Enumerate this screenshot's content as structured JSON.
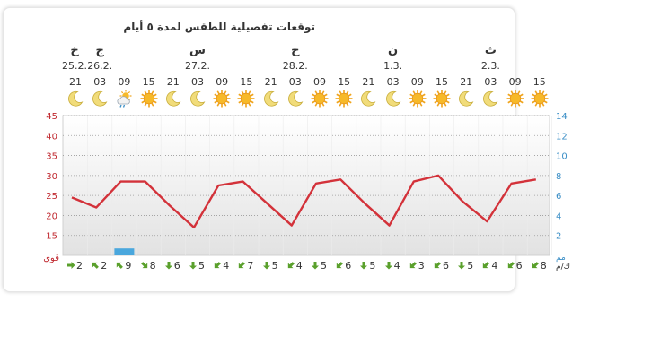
{
  "title": "توقعات تفصيلية للطقس لمدة ٥ أيام",
  "days": [
    {
      "label": "خ",
      "date": "25.2."
    },
    {
      "label": "ج",
      "date": "26.2."
    },
    {
      "label": "س",
      "date": "27.2."
    },
    {
      "label": "ح",
      "date": "28.2."
    },
    {
      "label": "ن",
      "date": "1.3."
    },
    {
      "label": "ث",
      "date": "2.3."
    }
  ],
  "columns": [
    {
      "hour": "21",
      "icon": "moon-icon",
      "temp": 24.5,
      "wind": 2,
      "dir": "east"
    },
    {
      "hour": "03",
      "icon": "moon-icon",
      "temp": 22,
      "wind": 2,
      "dir": "northwest"
    },
    {
      "hour": "09",
      "icon": "partly-cloudy-rain-icon",
      "temp": 28.5,
      "wind": 9,
      "dir": "northwest"
    },
    {
      "hour": "15",
      "icon": "sun-icon",
      "temp": 28.5,
      "wind": 8,
      "dir": "southeast"
    },
    {
      "hour": "21",
      "icon": "moon-icon",
      "temp": 22.5,
      "wind": 6,
      "dir": "south"
    },
    {
      "hour": "03",
      "icon": "moon-icon",
      "temp": 17,
      "wind": 5,
      "dir": "south"
    },
    {
      "hour": "09",
      "icon": "sun-icon",
      "temp": 27.5,
      "wind": 4,
      "dir": "southwest"
    },
    {
      "hour": "15",
      "icon": "sun-icon",
      "temp": 28.5,
      "wind": 7,
      "dir": "southwest"
    },
    {
      "hour": "21",
      "icon": "moon-icon",
      "temp": 23,
      "wind": 5,
      "dir": "south"
    },
    {
      "hour": "03",
      "icon": "moon-icon",
      "temp": 17.5,
      "wind": 4,
      "dir": "southwest"
    },
    {
      "hour": "09",
      "icon": "sun-icon",
      "temp": 28,
      "wind": 5,
      "dir": "south"
    },
    {
      "hour": "15",
      "icon": "sun-icon",
      "temp": 29,
      "wind": 6,
      "dir": "southwest"
    },
    {
      "hour": "21",
      "icon": "moon-icon",
      "temp": 23,
      "wind": 5,
      "dir": "south"
    },
    {
      "hour": "03",
      "icon": "moon-icon",
      "temp": 17.5,
      "wind": 4,
      "dir": "south"
    },
    {
      "hour": "09",
      "icon": "sun-icon",
      "temp": 28.5,
      "wind": 3,
      "dir": "southwest"
    },
    {
      "hour": "15",
      "icon": "sun-icon",
      "temp": 30,
      "wind": 6,
      "dir": "southwest"
    },
    {
      "hour": "21",
      "icon": "moon-icon",
      "temp": 23.5,
      "wind": 5,
      "dir": "south"
    },
    {
      "hour": "03",
      "icon": "moon-icon",
      "temp": 18.5,
      "wind": 4,
      "dir": "southwest"
    },
    {
      "hour": "09",
      "icon": "sun-icon",
      "temp": 28,
      "wind": 6,
      "dir": "southwest"
    },
    {
      "hour": "15",
      "icon": "sun-icon",
      "temp": 29,
      "wind": 8,
      "dir": "southwest"
    }
  ],
  "chart_data": {
    "type": "line",
    "temp_axis_ticks": [
      "45",
      "40",
      "35",
      "30",
      "25",
      "20",
      "15"
    ],
    "precip_axis_ticks": [
      "14",
      "12",
      "10",
      "8",
      "6",
      "4",
      "2"
    ],
    "ylim_temp": [
      10,
      45
    ],
    "ylim_precip": [
      0,
      14
    ],
    "precip_values": [
      0,
      0,
      0.7,
      0,
      0,
      0,
      0,
      0,
      0,
      0,
      0,
      0,
      0,
      0,
      0,
      0,
      0,
      0,
      0,
      0
    ],
    "grid": true
  },
  "labels": {
    "precip_unit": "مم",
    "wind_label": "قوى",
    "wind_unit": "ك/م"
  },
  "colors": {
    "temp_line": "#d3323a",
    "temp_axis": "#c0282f",
    "precip_axis": "#3a8ec6",
    "precip_bar": "#4aa7dd",
    "wind_arrow": "#5aa02c"
  }
}
